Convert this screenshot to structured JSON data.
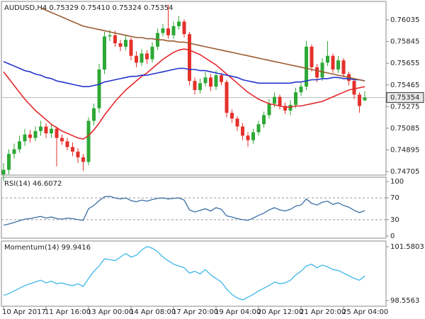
{
  "chart_data": [
    {
      "type": "candlestick",
      "title": "AUDUSD,H4 0.75329 0.75410 0.75324 0.75354",
      "categories": [
        "10 Apr 2017",
        null,
        null,
        null,
        null,
        null,
        null,
        null,
        "11 Apr 16:00",
        null,
        null,
        null,
        null,
        null,
        null,
        null,
        "13 Apr 00:00",
        null,
        null,
        null,
        null,
        null,
        null,
        null,
        "14 Apr 08:00",
        null,
        null,
        null,
        null,
        null,
        null,
        null,
        "17 Apr 20:00",
        null,
        null,
        null,
        null,
        null,
        null,
        null,
        "19 Apr 04:00",
        null,
        null,
        null,
        null,
        null,
        null,
        null,
        "20 Apr 12:00",
        null,
        null,
        null,
        null,
        null,
        null,
        null,
        "21 Apr 20:00",
        null,
        null,
        null,
        null,
        null,
        null,
        null,
        "25 Apr 04:00",
        null,
        null,
        null,
        null
      ],
      "open": [
        0.7468,
        0.7472,
        0.7486,
        0.749,
        0.7497,
        0.7503,
        0.75,
        0.7506,
        0.751,
        0.7504,
        0.7508,
        0.75,
        0.7497,
        0.7492,
        0.7488,
        0.7483,
        0.7479,
        0.7515,
        0.7526,
        0.756,
        0.7589,
        0.759,
        0.7583,
        0.758,
        0.7586,
        0.7572,
        0.7566,
        0.7574,
        0.7569,
        0.758,
        0.7592,
        0.7596,
        0.759,
        0.7598,
        0.7602,
        0.7591,
        0.755,
        0.7542,
        0.7548,
        0.7553,
        0.7545,
        0.7555,
        0.7549,
        0.7522,
        0.7517,
        0.751,
        0.7502,
        0.7498,
        0.7505,
        0.7512,
        0.752,
        0.753,
        0.7536,
        0.7528,
        0.7524,
        0.7529,
        0.754,
        0.7545,
        0.758,
        0.7562,
        0.7553,
        0.7566,
        0.7572,
        0.756,
        0.7568,
        0.7556,
        0.755,
        0.7538,
        0.75329
      ],
      "high": [
        0.7478,
        0.749,
        0.7495,
        0.7502,
        0.7508,
        0.7507,
        0.751,
        0.7515,
        0.7513,
        0.7512,
        0.751,
        0.7503,
        0.75,
        0.7496,
        0.7491,
        0.7486,
        0.7518,
        0.753,
        0.7565,
        0.7593,
        0.7595,
        0.7594,
        0.7586,
        0.759,
        0.7588,
        0.7576,
        0.7578,
        0.7577,
        0.7584,
        0.7596,
        0.76,
        0.7617,
        0.7602,
        0.7607,
        0.7604,
        0.7593,
        0.7553,
        0.7552,
        0.7558,
        0.7556,
        0.7559,
        0.7557,
        0.7551,
        0.7525,
        0.7519,
        0.7513,
        0.7505,
        0.7508,
        0.7515,
        0.7523,
        0.7534,
        0.754,
        0.7538,
        0.7531,
        0.7533,
        0.7544,
        0.7548,
        0.7585,
        0.7582,
        0.7565,
        0.757,
        0.7585,
        0.7574,
        0.7572,
        0.757,
        0.7558,
        0.7552,
        0.754,
        0.7541
      ],
      "low": [
        0.7462,
        0.7468,
        0.7482,
        0.7487,
        0.7493,
        0.7496,
        0.7497,
        0.7502,
        0.75,
        0.75,
        0.7475,
        0.7494,
        0.7489,
        0.7484,
        0.7478,
        0.7471,
        0.7476,
        0.7511,
        0.7522,
        0.7556,
        0.7585,
        0.758,
        0.7576,
        0.7577,
        0.7568,
        0.7562,
        0.7563,
        0.7565,
        0.7566,
        0.7577,
        0.7589,
        0.7587,
        0.7587,
        0.7595,
        0.7588,
        0.7546,
        0.7538,
        0.7539,
        0.7545,
        0.7541,
        0.7542,
        0.7546,
        0.7518,
        0.7513,
        0.7506,
        0.7498,
        0.7492,
        0.7495,
        0.7502,
        0.7509,
        0.7517,
        0.7527,
        0.7525,
        0.7521,
        0.752,
        0.7526,
        0.7537,
        0.7542,
        0.7558,
        0.7549,
        0.755,
        0.7563,
        0.7557,
        0.7557,
        0.7553,
        0.7546,
        0.7534,
        0.7522,
        0.75324
      ],
      "close": [
        0.7472,
        0.7486,
        0.749,
        0.7497,
        0.7503,
        0.75,
        0.7506,
        0.751,
        0.7504,
        0.7508,
        0.75,
        0.7497,
        0.7492,
        0.7488,
        0.7483,
        0.7479,
        0.7515,
        0.7526,
        0.756,
        0.7589,
        0.759,
        0.7583,
        0.758,
        0.7586,
        0.7572,
        0.7566,
        0.7574,
        0.7569,
        0.758,
        0.7592,
        0.7596,
        0.759,
        0.7598,
        0.7602,
        0.7591,
        0.755,
        0.7542,
        0.7548,
        0.7553,
        0.7545,
        0.7555,
        0.7549,
        0.7522,
        0.7517,
        0.751,
        0.7502,
        0.7498,
        0.7505,
        0.7512,
        0.752,
        0.753,
        0.7536,
        0.7528,
        0.7524,
        0.7529,
        0.754,
        0.7545,
        0.758,
        0.7562,
        0.7553,
        0.7566,
        0.7572,
        0.756,
        0.7568,
        0.7556,
        0.755,
        0.7538,
        0.7528,
        0.75354
      ],
      "up_color": "#2ea836",
      "down_color": "#e5312b",
      "series": [
        {
          "color": "#e3282c",
          "values": [
            0.7558,
            0.7552,
            0.7546,
            0.754,
            0.7534,
            0.7529,
            0.7524,
            0.752,
            0.7516,
            0.7512,
            0.7509,
            0.7506,
            0.7504,
            0.7502,
            0.75,
            0.7499,
            0.7502,
            0.7507,
            0.7513,
            0.752,
            0.7526,
            0.7532,
            0.7537,
            0.7542,
            0.7546,
            0.755,
            0.7554,
            0.7557,
            0.7561,
            0.7565,
            0.7569,
            0.7572,
            0.7575,
            0.7577,
            0.7578,
            0.7577,
            0.7575,
            0.7573,
            0.757,
            0.7567,
            0.7564,
            0.756,
            0.7556,
            0.7552,
            0.7548,
            0.7544,
            0.754,
            0.7537,
            0.7534,
            0.7532,
            0.753,
            0.7529,
            0.7528,
            0.7527,
            0.7527,
            0.7528,
            0.7528,
            0.7529,
            0.753,
            0.7531,
            0.7532,
            0.7534,
            0.7536,
            0.7538,
            0.754,
            0.7542,
            0.7543,
            0.7544,
            0.7545
          ]
        },
        {
          "color": "#2233cc",
          "values": [
            0.7567,
            0.7565,
            0.7563,
            0.7561,
            0.7559,
            0.7558,
            0.7556,
            0.7555,
            0.7553,
            0.7552,
            0.755,
            0.7549,
            0.7548,
            0.7547,
            0.7546,
            0.7545,
            0.7545,
            0.7546,
            0.7547,
            0.7549,
            0.755,
            0.7551,
            0.7552,
            0.7553,
            0.7554,
            0.7554,
            0.7555,
            0.7555,
            0.7556,
            0.7557,
            0.7558,
            0.7559,
            0.756,
            0.7561,
            0.7561,
            0.756,
            0.756,
            0.7559,
            0.7559,
            0.7558,
            0.7557,
            0.7556,
            0.7555,
            0.7554,
            0.7553,
            0.7551,
            0.755,
            0.7549,
            0.7548,
            0.7548,
            0.7548,
            0.7548,
            0.7548,
            0.7548,
            0.7548,
            0.7549,
            0.7549,
            0.755,
            0.7551,
            0.7551,
            0.7552,
            0.7552,
            0.7553,
            0.7553,
            0.7552,
            0.7552,
            0.7551,
            0.7551,
            0.755
          ]
        },
        {
          "color": "#9a5a2e",
          "values": [
            null,
            null,
            null,
            null,
            null,
            null,
            null,
            0.7614,
            0.7612,
            0.761,
            0.7608,
            0.7606,
            0.7604,
            0.7602,
            0.76,
            0.7598,
            0.7597,
            0.7596,
            0.7595,
            0.7594,
            0.7593,
            0.7592,
            0.7591,
            0.759,
            0.7589,
            0.7588,
            0.7588,
            0.7587,
            0.7587,
            0.7586,
            0.7586,
            0.7585,
            0.7585,
            0.7584,
            0.7584,
            0.7583,
            0.7582,
            0.7581,
            0.758,
            0.7579,
            0.7578,
            0.7577,
            0.7576,
            0.7575,
            0.7574,
            0.7573,
            0.7572,
            0.7571,
            0.757,
            0.7569,
            0.7568,
            0.7567,
            0.7566,
            0.7565,
            0.7564,
            0.7563,
            0.7562,
            0.7561,
            0.756,
            0.7559,
            0.7558,
            0.7557,
            0.7556,
            0.7555,
            0.7554,
            0.7553,
            0.7552,
            0.7551,
            0.755
          ]
        }
      ],
      "ylim": [
        0.74674,
        0.76197
      ],
      "yticks": [
        0.76035,
        0.75845,
        0.75655,
        0.75465,
        0.75275,
        0.75085,
        0.74895,
        0.74705
      ]
    },
    {
      "type": "line",
      "title": "RSI(14) 46.6072",
      "color": "#3a6ea5",
      "values": [
        20,
        22,
        25,
        28,
        31,
        32,
        34,
        36,
        33,
        35,
        32,
        31,
        33,
        32,
        30,
        29,
        50,
        56,
        65,
        72,
        73,
        70,
        68,
        70,
        65,
        63,
        66,
        64,
        67,
        69,
        70,
        68,
        69,
        70,
        66,
        48,
        44,
        47,
        50,
        46,
        52,
        49,
        37,
        35,
        32,
        30,
        29,
        33,
        38,
        42,
        48,
        52,
        48,
        46,
        49,
        55,
        57,
        68,
        60,
        57,
        62,
        64,
        58,
        61,
        56,
        53,
        47,
        43,
        46.6072
      ],
      "ylim": [
        -4,
        108
      ],
      "yticks": [
        100,
        70,
        30,
        0
      ],
      "levels": [
        70,
        30
      ]
    },
    {
      "type": "line",
      "title": "Momentum(14) 99.9416",
      "color": "#3fb8e8",
      "values": [
        98.85,
        98.95,
        99.1,
        99.25,
        99.4,
        99.5,
        99.6,
        99.7,
        99.55,
        99.65,
        99.5,
        99.55,
        99.45,
        99.4,
        99.5,
        99.35,
        99.8,
        100.2,
        100.5,
        100.9,
        100.85,
        100.8,
        101.0,
        101.2,
        101.0,
        101.1,
        101.4,
        101.58,
        101.5,
        101.3,
        101.0,
        100.8,
        100.6,
        100.5,
        100.4,
        100.1,
        100.2,
        100.05,
        100.3,
        100.0,
        99.8,
        99.6,
        99.2,
        98.9,
        98.7,
        98.6,
        98.75,
        98.9,
        99.1,
        99.25,
        99.4,
        99.6,
        99.5,
        99.55,
        99.7,
        100.0,
        100.2,
        100.5,
        100.6,
        100.4,
        100.55,
        100.45,
        100.3,
        100.25,
        100.1,
        99.95,
        99.8,
        99.7,
        99.9416
      ],
      "ylim": [
        98.24,
        101.9
      ],
      "yticks": [
        101.5803,
        98.5563
      ]
    }
  ]
}
